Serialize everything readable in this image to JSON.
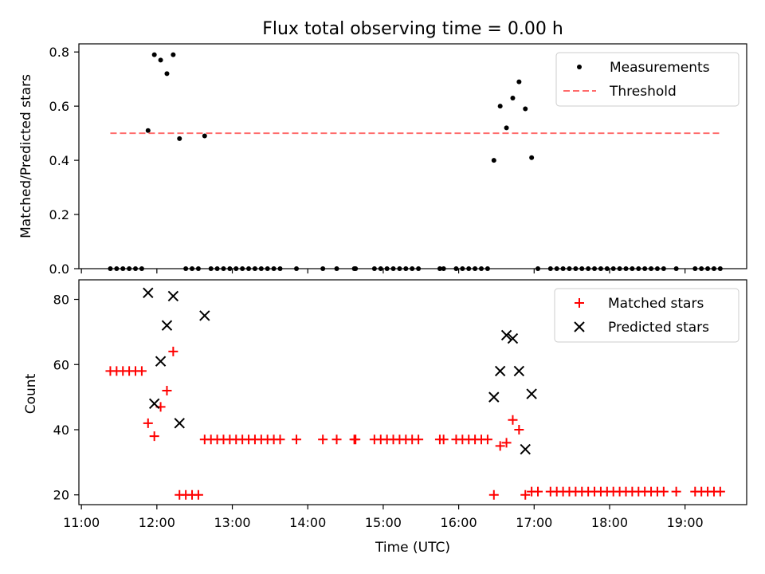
{
  "figure": {
    "title": "Flux total observing time = 0.00 h"
  },
  "chart_data": [
    {
      "type": "scatter",
      "ylabel": "Matched/Predicted stars",
      "xlabel": "",
      "xlim": [
        "10:58",
        "19:49"
      ],
      "ylim": [
        0,
        0.83
      ],
      "yticks": [
        0.0,
        0.2,
        0.4,
        0.6,
        0.8
      ],
      "ytick_labels": [
        "0.0",
        "0.2",
        "0.4",
        "0.6",
        "0.8"
      ],
      "legend": {
        "position": "top-right",
        "entries": [
          "Measurements",
          "Threshold"
        ]
      },
      "series": [
        {
          "name": "Measurements",
          "marker": "dot",
          "color": "#000000",
          "points": [
            [
              "11:23",
              0
            ],
            [
              "11:28",
              0
            ],
            [
              "11:33",
              0
            ],
            [
              "11:38",
              0
            ],
            [
              "11:43",
              0
            ],
            [
              "11:48",
              0
            ],
            [
              "11:53",
              0.51
            ],
            [
              "11:58",
              0.79
            ],
            [
              "12:03",
              0.77
            ],
            [
              "12:08",
              0.72
            ],
            [
              "12:13",
              0.79
            ],
            [
              "12:18",
              0.48
            ],
            [
              "12:23",
              0
            ],
            [
              "12:28",
              0
            ],
            [
              "12:33",
              0
            ],
            [
              "12:38",
              0.49
            ],
            [
              "12:43",
              0
            ],
            [
              "12:48",
              0
            ],
            [
              "12:53",
              0
            ],
            [
              "12:58",
              0
            ],
            [
              "13:03",
              0
            ],
            [
              "13:08",
              0
            ],
            [
              "13:13",
              0
            ],
            [
              "13:18",
              0
            ],
            [
              "13:23",
              0
            ],
            [
              "13:28",
              0
            ],
            [
              "13:33",
              0
            ],
            [
              "13:38",
              0
            ],
            [
              "13:51",
              0
            ],
            [
              "14:12",
              0
            ],
            [
              "14:23",
              0
            ],
            [
              "14:37",
              0
            ],
            [
              "14:38",
              0
            ],
            [
              "14:53",
              0
            ],
            [
              "14:58",
              0
            ],
            [
              "15:03",
              0
            ],
            [
              "15:08",
              0
            ],
            [
              "15:13",
              0
            ],
            [
              "15:18",
              0
            ],
            [
              "15:23",
              0
            ],
            [
              "15:28",
              0
            ],
            [
              "15:45",
              0
            ],
            [
              "15:48",
              0
            ],
            [
              "15:58",
              0
            ],
            [
              "16:03",
              0
            ],
            [
              "16:08",
              0
            ],
            [
              "16:13",
              0
            ],
            [
              "16:18",
              0
            ],
            [
              "16:23",
              0
            ],
            [
              "16:28",
              0.4
            ],
            [
              "16:33",
              0.6
            ],
            [
              "16:38",
              0.52
            ],
            [
              "16:43",
              0.63
            ],
            [
              "16:48",
              0.69
            ],
            [
              "16:53",
              0.59
            ],
            [
              "16:58",
              0.41
            ],
            [
              "17:03",
              0
            ],
            [
              "17:13",
              0
            ],
            [
              "17:18",
              0
            ],
            [
              "17:23",
              0
            ],
            [
              "17:28",
              0
            ],
            [
              "17:33",
              0
            ],
            [
              "17:38",
              0
            ],
            [
              "17:43",
              0
            ],
            [
              "17:48",
              0
            ],
            [
              "17:53",
              0
            ],
            [
              "17:58",
              0
            ],
            [
              "18:03",
              0
            ],
            [
              "18:08",
              0
            ],
            [
              "18:13",
              0
            ],
            [
              "18:18",
              0
            ],
            [
              "18:23",
              0
            ],
            [
              "18:28",
              0
            ],
            [
              "18:33",
              0
            ],
            [
              "18:38",
              0
            ],
            [
              "18:43",
              0
            ],
            [
              "18:53",
              0
            ],
            [
              "19:08",
              0
            ],
            [
              "19:13",
              0
            ],
            [
              "19:18",
              0
            ],
            [
              "19:23",
              0
            ],
            [
              "19:28",
              0
            ]
          ]
        },
        {
          "name": "Threshold",
          "style": "dashed",
          "color": "#ff6b6b",
          "points": [
            [
              "11:23",
              0.5
            ],
            [
              "19:28",
              0.5
            ]
          ]
        }
      ]
    },
    {
      "type": "scatter",
      "ylabel": "Count",
      "xlabel": "Time (UTC)",
      "xlim": [
        "10:58",
        "19:49"
      ],
      "ylim": [
        17,
        86
      ],
      "yticks": [
        20,
        40,
        60,
        80
      ],
      "ytick_labels": [
        "20",
        "40",
        "60",
        "80"
      ],
      "xticks": [
        "11:00",
        "12:00",
        "13:00",
        "14:00",
        "15:00",
        "16:00",
        "17:00",
        "18:00",
        "19:00"
      ],
      "xtick_labels": [
        "11:00",
        "12:00",
        "13:00",
        "14:00",
        "15:00",
        "16:00",
        "17:00",
        "18:00",
        "19:00"
      ],
      "legend": {
        "position": "top-right",
        "entries": [
          "Matched stars",
          "Predicted stars"
        ]
      },
      "series": [
        {
          "name": "Matched stars",
          "marker": "plus",
          "color": "#ff0000",
          "points": [
            [
              "11:23",
              58
            ],
            [
              "11:28",
              58
            ],
            [
              "11:33",
              58
            ],
            [
              "11:38",
              58
            ],
            [
              "11:43",
              58
            ],
            [
              "11:48",
              58
            ],
            [
              "11:53",
              42
            ],
            [
              "11:58",
              38
            ],
            [
              "12:03",
              47
            ],
            [
              "12:08",
              52
            ],
            [
              "12:13",
              64
            ],
            [
              "12:18",
              20
            ],
            [
              "12:23",
              20
            ],
            [
              "12:28",
              20
            ],
            [
              "12:33",
              20
            ],
            [
              "12:38",
              37
            ],
            [
              "12:43",
              37
            ],
            [
              "12:48",
              37
            ],
            [
              "12:53",
              37
            ],
            [
              "12:58",
              37
            ],
            [
              "13:03",
              37
            ],
            [
              "13:08",
              37
            ],
            [
              "13:13",
              37
            ],
            [
              "13:18",
              37
            ],
            [
              "13:23",
              37
            ],
            [
              "13:28",
              37
            ],
            [
              "13:33",
              37
            ],
            [
              "13:38",
              37
            ],
            [
              "13:51",
              37
            ],
            [
              "14:12",
              37
            ],
            [
              "14:23",
              37
            ],
            [
              "14:37",
              37
            ],
            [
              "14:38",
              37
            ],
            [
              "14:53",
              37
            ],
            [
              "14:58",
              37
            ],
            [
              "15:03",
              37
            ],
            [
              "15:08",
              37
            ],
            [
              "15:13",
              37
            ],
            [
              "15:18",
              37
            ],
            [
              "15:23",
              37
            ],
            [
              "15:28",
              37
            ],
            [
              "15:45",
              37
            ],
            [
              "15:48",
              37
            ],
            [
              "15:58",
              37
            ],
            [
              "16:03",
              37
            ],
            [
              "16:08",
              37
            ],
            [
              "16:13",
              37
            ],
            [
              "16:18",
              37
            ],
            [
              "16:23",
              37
            ],
            [
              "16:28",
              20
            ],
            [
              "16:33",
              35
            ],
            [
              "16:38",
              36
            ],
            [
              "16:43",
              43
            ],
            [
              "16:48",
              40
            ],
            [
              "16:53",
              20
            ],
            [
              "16:58",
              21
            ],
            [
              "17:03",
              21
            ],
            [
              "17:13",
              21
            ],
            [
              "17:18",
              21
            ],
            [
              "17:23",
              21
            ],
            [
              "17:28",
              21
            ],
            [
              "17:33",
              21
            ],
            [
              "17:38",
              21
            ],
            [
              "17:43",
              21
            ],
            [
              "17:48",
              21
            ],
            [
              "17:53",
              21
            ],
            [
              "17:58",
              21
            ],
            [
              "18:03",
              21
            ],
            [
              "18:08",
              21
            ],
            [
              "18:13",
              21
            ],
            [
              "18:18",
              21
            ],
            [
              "18:23",
              21
            ],
            [
              "18:28",
              21
            ],
            [
              "18:33",
              21
            ],
            [
              "18:38",
              21
            ],
            [
              "18:43",
              21
            ],
            [
              "18:53",
              21
            ],
            [
              "19:08",
              21
            ],
            [
              "19:13",
              21
            ],
            [
              "19:18",
              21
            ],
            [
              "19:23",
              21
            ],
            [
              "19:28",
              21
            ]
          ]
        },
        {
          "name": "Predicted stars",
          "marker": "x",
          "color": "#000000",
          "points": [
            [
              "11:53",
              82
            ],
            [
              "11:58",
              48
            ],
            [
              "12:03",
              61
            ],
            [
              "12:08",
              72
            ],
            [
              "12:13",
              81
            ],
            [
              "12:18",
              42
            ],
            [
              "12:38",
              75
            ],
            [
              "16:28",
              50
            ],
            [
              "16:33",
              58
            ],
            [
              "16:38",
              69
            ],
            [
              "16:43",
              68
            ],
            [
              "16:48",
              58
            ],
            [
              "16:53",
              34
            ],
            [
              "16:58",
              51
            ]
          ]
        }
      ]
    }
  ]
}
